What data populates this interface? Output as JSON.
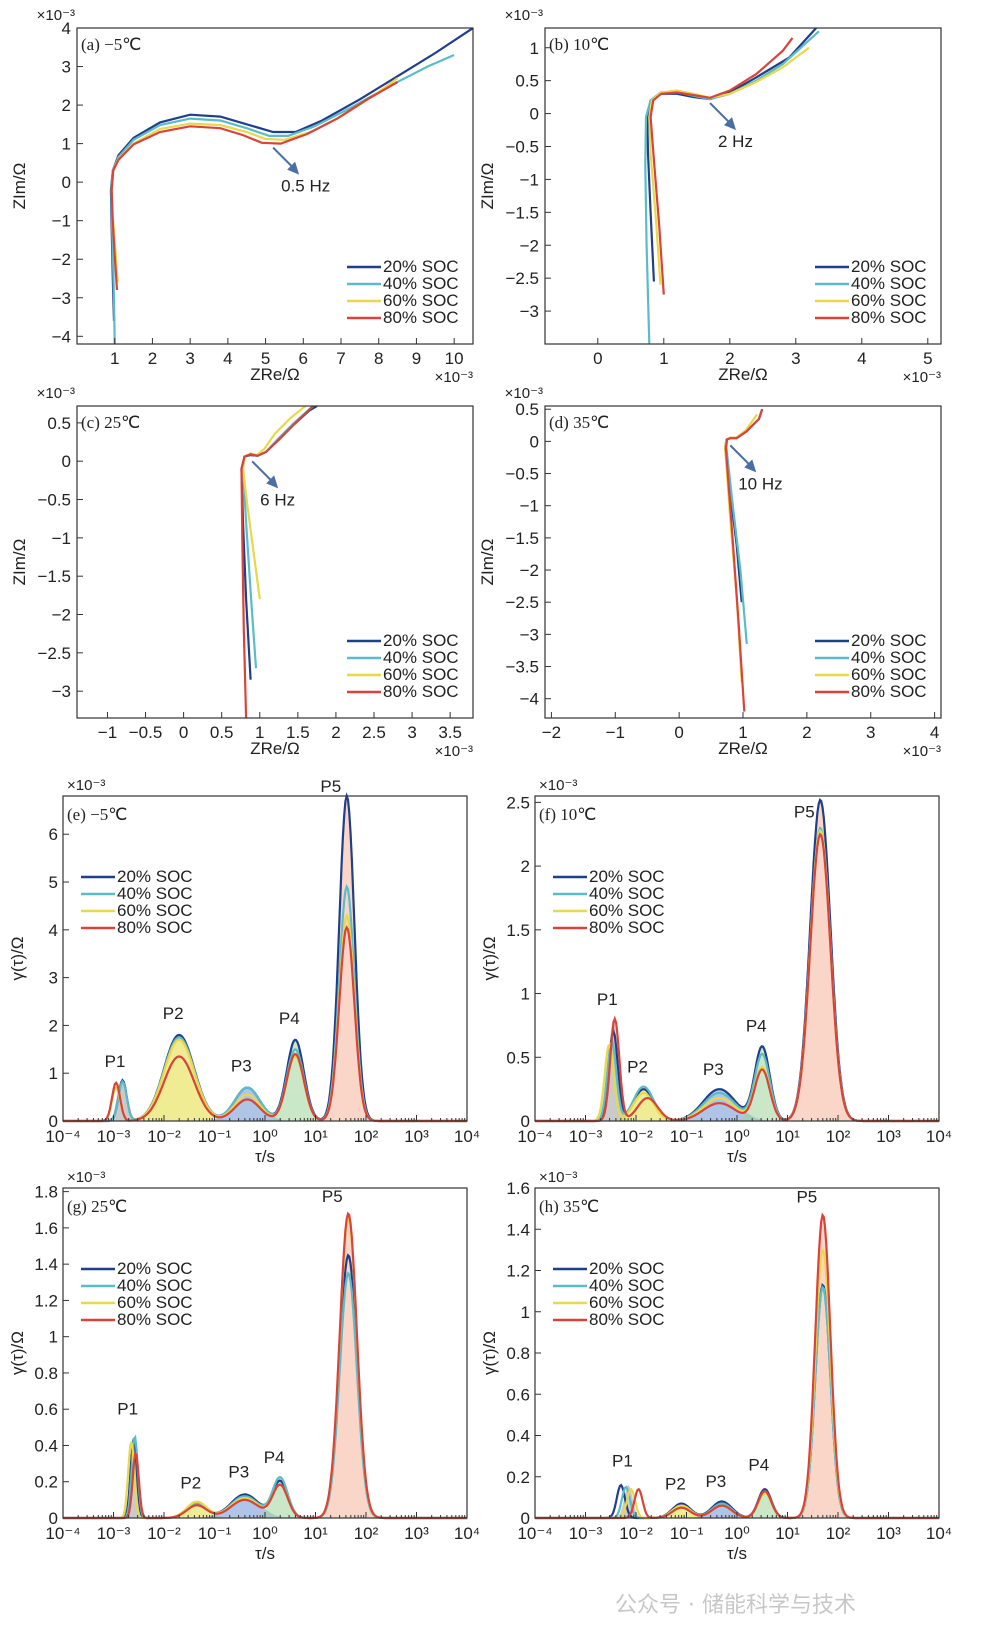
{
  "watermark": "公众号 · 储能科学与技术",
  "legend_entries": [
    "20% SOC",
    "40% SOC",
    "60% SOC",
    "80% SOC"
  ],
  "series_colors": {
    "20% SOC": "#1f3f8a",
    "40% SOC": "#5bbcc8",
    "60% SOC": "#e8d84a",
    "80% SOC": "#d9433a"
  },
  "peak_fill_colors": {
    "P1": "#9e9e9e",
    "P2": "#e2dd3a",
    "P3": "#6f94d6",
    "P4": "#9fd49a",
    "P5": "#f5b49c"
  },
  "chart_data": [
    {
      "id": "a",
      "type": "line",
      "title": "(a) −5℃",
      "xlabel": "Z_Re/Ω",
      "ylabel": "Z_Im/Ω",
      "x_scale": "×10⁻³",
      "y_scale": "×10⁻³",
      "xlim": [
        0,
        10.5
      ],
      "ylim": [
        -4.2,
        4
      ],
      "xticks": [
        1,
        2,
        3,
        4,
        5,
        6,
        7,
        8,
        9,
        10
      ],
      "yticks": [
        -4,
        -3,
        -2,
        -1,
        0,
        1,
        2,
        3,
        4
      ],
      "annotation": {
        "text": "0.5 Hz",
        "x": 5.2,
        "y": 1.0
      },
      "series": [
        {
          "name": "20% SOC",
          "x": [
            0.98,
            0.95,
            0.92,
            0.9,
            0.95,
            1.1,
            1.5,
            2.2,
            3.0,
            3.8,
            4.5,
            5.2,
            5.8,
            6.5,
            7.5,
            8.5,
            9.5,
            10.5
          ],
          "y": [
            -3.6,
            -2.5,
            -1.2,
            -0.2,
            0.3,
            0.7,
            1.15,
            1.55,
            1.75,
            1.7,
            1.5,
            1.3,
            1.3,
            1.6,
            2.15,
            2.75,
            3.35,
            4.0
          ]
        },
        {
          "name": "40% SOC",
          "x": [
            1.0,
            0.98,
            0.94,
            0.91,
            0.95,
            1.1,
            1.5,
            2.2,
            3.0,
            3.8,
            4.5,
            5.1,
            5.6,
            6.3,
            7.3,
            8.3,
            9.3,
            10.0
          ],
          "y": [
            -4.2,
            -3.0,
            -1.5,
            -0.2,
            0.3,
            0.65,
            1.1,
            1.48,
            1.65,
            1.6,
            1.4,
            1.2,
            1.2,
            1.45,
            1.95,
            2.5,
            3.0,
            3.3
          ]
        },
        {
          "name": "60% SOC",
          "x": [
            1.08,
            1.02,
            0.95,
            0.92,
            0.96,
            1.1,
            1.5,
            2.2,
            3.0,
            3.8,
            4.5,
            5.0,
            5.5,
            6.2,
            7.0,
            7.8,
            8.5
          ],
          "y": [
            -2.6,
            -1.8,
            -0.9,
            -0.2,
            0.3,
            0.6,
            1.0,
            1.38,
            1.52,
            1.48,
            1.3,
            1.12,
            1.1,
            1.3,
            1.7,
            2.2,
            2.7
          ]
        },
        {
          "name": "80% SOC",
          "x": [
            1.06,
            1.0,
            0.94,
            0.92,
            0.96,
            1.1,
            1.5,
            2.2,
            3.0,
            3.8,
            4.4,
            4.9,
            5.4,
            6.1,
            6.9,
            7.7,
            8.5
          ],
          "y": [
            -2.8,
            -1.9,
            -0.9,
            -0.2,
            0.3,
            0.58,
            0.98,
            1.3,
            1.45,
            1.4,
            1.22,
            1.02,
            1.0,
            1.25,
            1.65,
            2.15,
            2.6
          ]
        }
      ]
    },
    {
      "id": "b",
      "type": "line",
      "title": "(b) 10℃",
      "xlabel": "Z_Re/Ω",
      "ylabel": "Z_Im/Ω",
      "x_scale": "×10⁻³",
      "y_scale": "×10⁻³",
      "xlim": [
        -0.8,
        5.2
      ],
      "ylim": [
        -3.5,
        1.3
      ],
      "xticks": [
        0,
        1,
        2,
        3,
        4,
        5
      ],
      "yticks": [
        -3,
        -2.5,
        -2,
        -1.5,
        -1,
        -0.5,
        0,
        0.5,
        1
      ],
      "annotation": {
        "text": "2 Hz",
        "x": 1.7,
        "y": 0.22
      },
      "series": [
        {
          "name": "20% SOC",
          "x": [
            0.85,
            0.8,
            0.76,
            0.75,
            0.8,
            0.95,
            1.2,
            1.45,
            1.7,
            2.0,
            2.4,
            2.9,
            3.4
          ],
          "y": [
            -2.55,
            -1.5,
            -0.6,
            -0.05,
            0.2,
            0.3,
            0.3,
            0.25,
            0.22,
            0.32,
            0.55,
            0.85,
            1.4
          ]
        },
        {
          "name": "40% SOC",
          "x": [
            0.78,
            0.74,
            0.72,
            0.73,
            0.8,
            0.95,
            1.2,
            1.45,
            1.7,
            2.0,
            2.4,
            2.8,
            3.35
          ],
          "y": [
            -3.5,
            -2.0,
            -0.8,
            -0.05,
            0.2,
            0.32,
            0.33,
            0.27,
            0.22,
            0.3,
            0.5,
            0.75,
            1.25
          ]
        },
        {
          "name": "60% SOC",
          "x": [
            0.95,
            0.88,
            0.8,
            0.78,
            0.82,
            0.95,
            1.2,
            1.45,
            1.7,
            2.0,
            2.4,
            2.8,
            3.2
          ],
          "y": [
            -2.6,
            -1.6,
            -0.6,
            -0.05,
            0.2,
            0.32,
            0.35,
            0.3,
            0.24,
            0.3,
            0.48,
            0.7,
            1.0
          ]
        },
        {
          "name": "80% SOC",
          "x": [
            1.0,
            0.93,
            0.85,
            0.8,
            0.84,
            0.96,
            1.2,
            1.45,
            1.7,
            2.0,
            2.4,
            2.8,
            2.95
          ],
          "y": [
            -2.75,
            -1.7,
            -0.7,
            -0.05,
            0.2,
            0.3,
            0.32,
            0.28,
            0.24,
            0.35,
            0.6,
            0.95,
            1.15
          ]
        }
      ]
    },
    {
      "id": "c",
      "type": "line",
      "title": "(c) 25℃",
      "xlabel": "Z_Re/Ω",
      "ylabel": "Z_Im/Ω",
      "x_scale": "×10⁻³",
      "y_scale": "×10⁻³",
      "xlim": [
        -1.4,
        3.8
      ],
      "ylim": [
        -3.35,
        0.72
      ],
      "xticks": [
        -1,
        -0.5,
        0,
        0.5,
        1,
        1.5,
        2,
        2.5,
        3,
        3.5
      ],
      "yticks": [
        -3,
        -2.5,
        -2,
        -1.5,
        -1,
        -0.5,
        0,
        0.5
      ],
      "annotation": {
        "text": "6 Hz",
        "x": 0.9,
        "y": 0.05
      },
      "series": [
        {
          "name": "20% SOC",
          "x": [
            0.88,
            0.82,
            0.78,
            0.76,
            0.8,
            0.88,
            0.97,
            1.08,
            1.25,
            1.45,
            1.65,
            1.75
          ],
          "y": [
            -2.85,
            -1.8,
            -0.8,
            -0.1,
            0.06,
            0.08,
            0.07,
            0.12,
            0.28,
            0.48,
            0.66,
            0.72
          ]
        },
        {
          "name": "40% SOC",
          "x": [
            0.95,
            0.88,
            0.82,
            0.78,
            0.8,
            0.88,
            0.97,
            1.08,
            1.25,
            1.45,
            1.7
          ],
          "y": [
            -2.7,
            -1.7,
            -0.8,
            -0.1,
            0.06,
            0.09,
            0.07,
            0.12,
            0.3,
            0.5,
            0.72
          ]
        },
        {
          "name": "60% SOC",
          "x": [
            1.0,
            0.92,
            0.84,
            0.78,
            0.8,
            0.88,
            0.96,
            1.06,
            1.2,
            1.4,
            1.6
          ],
          "y": [
            -1.8,
            -1.2,
            -0.6,
            -0.1,
            0.06,
            0.1,
            0.08,
            0.16,
            0.36,
            0.56,
            0.72
          ]
        },
        {
          "name": "80% SOC",
          "x": [
            0.82,
            0.79,
            0.77,
            0.76,
            0.8,
            0.88,
            0.97,
            1.08,
            1.25,
            1.45,
            1.7
          ],
          "y": [
            -3.35,
            -2.2,
            -1.0,
            -0.1,
            0.06,
            0.09,
            0.07,
            0.12,
            0.28,
            0.48,
            0.72
          ]
        }
      ]
    },
    {
      "id": "d",
      "type": "line",
      "title": "(d) 35℃",
      "xlabel": "Z_Re/Ω",
      "ylabel": "Z_Im/Ω",
      "x_scale": "×10⁻³",
      "y_scale": "×10⁻³",
      "xlim": [
        -2.1,
        4.1
      ],
      "ylim": [
        -4.3,
        0.55
      ],
      "xticks": [
        -2,
        -1,
        0,
        1,
        2,
        3,
        4
      ],
      "yticks": [
        -4,
        -3.5,
        -3,
        -2.5,
        -2,
        -1.5,
        -1,
        -0.5,
        0,
        0.5
      ],
      "annotation": {
        "text": "10 Hz",
        "x": 0.8,
        "y": 0.0
      },
      "series": [
        {
          "name": "20% SOC",
          "x": [
            0.98,
            0.9,
            0.8,
            0.72,
            0.74,
            0.8,
            0.9,
            1.05,
            1.25,
            1.3
          ],
          "y": [
            -2.5,
            -1.6,
            -0.8,
            -0.1,
            0.03,
            0.05,
            0.05,
            0.15,
            0.35,
            0.5
          ]
        },
        {
          "name": "40% SOC",
          "x": [
            1.06,
            0.96,
            0.84,
            0.74,
            0.75,
            0.8,
            0.9,
            1.05,
            1.25,
            1.3
          ],
          "y": [
            -3.15,
            -2.0,
            -1.0,
            -0.1,
            0.03,
            0.05,
            0.05,
            0.15,
            0.35,
            0.5
          ]
        },
        {
          "name": "60% SOC",
          "x": [
            0.98,
            0.9,
            0.8,
            0.72,
            0.74,
            0.8,
            0.9,
            1.05,
            1.22
          ],
          "y": [
            -3.75,
            -2.4,
            -1.2,
            -0.1,
            0.03,
            0.06,
            0.06,
            0.18,
            0.42
          ]
        },
        {
          "name": "80% SOC",
          "x": [
            1.02,
            0.93,
            0.83,
            0.73,
            0.75,
            0.8,
            0.9,
            1.05,
            1.25,
            1.3
          ],
          "y": [
            -4.2,
            -2.8,
            -1.4,
            -0.1,
            0.03,
            0.05,
            0.05,
            0.15,
            0.35,
            0.5
          ]
        }
      ]
    },
    {
      "id": "e",
      "type": "area",
      "title": "(e) −5℃",
      "xlabel": "τ/s",
      "ylabel": "γ(τ)/Ω",
      "x_scale": "log",
      "y_scale": "×10⁻³",
      "xlim": [
        -4,
        4
      ],
      "ylim": [
        0,
        6.8
      ],
      "yticks": [
        0,
        1,
        2,
        3,
        4,
        5,
        6
      ],
      "x_ticklabels": [
        "10⁻⁴",
        "10⁻³",
        "10⁻²",
        "10⁻¹",
        "10⁰",
        "10¹",
        "10²",
        "10³",
        "10⁴"
      ],
      "peaks": [
        {
          "label": "P1",
          "center": -2.85,
          "heights": [
            0.85,
            0.82,
            0.7,
            0.8
          ],
          "width": 0.08,
          "shifts": [
            0.03,
            0.03,
            -0.1,
            -0.1
          ]
        },
        {
          "label": "P2",
          "center": -1.7,
          "heights": [
            1.8,
            1.75,
            1.7,
            1.35
          ],
          "width": 0.3
        },
        {
          "label": "P3",
          "center": -0.35,
          "heights": [
            0.7,
            0.7,
            0.55,
            0.45
          ],
          "width": 0.25
        },
        {
          "label": "P4",
          "center": 0.6,
          "heights": [
            1.7,
            1.5,
            1.35,
            1.4
          ],
          "width": 0.17
        },
        {
          "label": "P5",
          "center": 1.62,
          "heights": [
            6.8,
            4.9,
            4.3,
            4.05
          ],
          "width": 0.15
        }
      ],
      "peak_label_values": {
        "P1": 1.05,
        "P2": 2.05,
        "P3": 0.95,
        "P4": 1.95,
        "P5": 6.8
      }
    },
    {
      "id": "f",
      "type": "area",
      "title": "(f) 10℃",
      "xlabel": "τ/s",
      "ylabel": "γ(τ)/Ω",
      "x_scale": "log",
      "y_scale": "×10⁻³",
      "xlim": [
        -4,
        4
      ],
      "ylim": [
        0,
        2.55
      ],
      "yticks": [
        0,
        0.5,
        1,
        1.5,
        2,
        2.5
      ],
      "x_ticklabels": [
        "10⁻⁴",
        "10⁻³",
        "10⁻²",
        "10⁻¹",
        "10⁰",
        "10¹",
        "10²",
        "10³",
        "10⁴"
      ],
      "peaks": [
        {
          "label": "P1",
          "center": -2.45,
          "heights": [
            0.7,
            0.62,
            0.6,
            0.8
          ],
          "width": 0.09,
          "shifts": [
            0.0,
            -0.03,
            -0.08,
            0.03
          ]
        },
        {
          "label": "P2",
          "center": -1.85,
          "heights": [
            0.25,
            0.27,
            0.22,
            0.18
          ],
          "width": 0.2,
          "shifts": [
            0,
            0,
            0,
            0.08
          ]
        },
        {
          "label": "P3",
          "center": -0.35,
          "heights": [
            0.25,
            0.22,
            0.18,
            0.14
          ],
          "width": 0.32
        },
        {
          "label": "P4",
          "center": 0.5,
          "heights": [
            0.58,
            0.52,
            0.42,
            0.4
          ],
          "width": 0.15
        },
        {
          "label": "P5",
          "center": 1.65,
          "heights": [
            2.52,
            2.3,
            2.28,
            2.25
          ],
          "width": 0.2
        }
      ],
      "peak_label_values": {
        "P1": 0.88,
        "P2": 0.35,
        "P3": 0.33,
        "P4": 0.67,
        "P5": 2.35
      }
    },
    {
      "id": "g",
      "type": "area",
      "title": "(g) 25℃",
      "xlabel": "τ/s",
      "ylabel": "γ(τ)/Ω",
      "x_scale": "log",
      "y_scale": "×10⁻³",
      "xlim": [
        -4,
        4
      ],
      "ylim": [
        0,
        1.82
      ],
      "yticks": [
        0,
        0.2,
        0.4,
        0.6,
        0.8,
        1,
        1.2,
        1.4,
        1.6,
        1.8
      ],
      "x_ticklabels": [
        "10⁻⁴",
        "10⁻³",
        "10⁻²",
        "10⁻¹",
        "10⁰",
        "10¹",
        "10²",
        "10³",
        "10⁴"
      ],
      "peaks": [
        {
          "label": "P1",
          "center": -2.6,
          "heights": [
            0.44,
            0.45,
            0.42,
            0.36
          ],
          "width": 0.06,
          "shifts": [
            0.0,
            0.02,
            -0.05,
            0.04
          ]
        },
        {
          "label": "P2",
          "center": -1.35,
          "heights": [
            0.08,
            0.08,
            0.09,
            0.07
          ],
          "width": 0.2
        },
        {
          "label": "P3",
          "center": -0.4,
          "heights": [
            0.13,
            0.12,
            0.11,
            0.1
          ],
          "width": 0.28
        },
        {
          "label": "P4",
          "center": 0.3,
          "heights": [
            0.2,
            0.22,
            0.18,
            0.18
          ],
          "width": 0.15
        },
        {
          "label": "P5",
          "center": 1.65,
          "heights": [
            1.45,
            1.35,
            1.65,
            1.68
          ],
          "width": 0.17
        }
      ],
      "peak_label_values": {
        "P1": 0.55,
        "P2": 0.14,
        "P3": 0.2,
        "P4": 0.28,
        "P5": 1.72
      }
    },
    {
      "id": "h",
      "type": "area",
      "title": "(h) 35℃",
      "xlabel": "τ/s",
      "ylabel": "γ(τ)/Ω",
      "x_scale": "log",
      "y_scale": "×10⁻³",
      "xlim": [
        -4,
        4
      ],
      "ylim": [
        0,
        1.6
      ],
      "yticks": [
        0,
        0.2,
        0.4,
        0.6,
        0.8,
        1,
        1.2,
        1.4,
        1.6
      ],
      "x_ticklabels": [
        "10⁻⁴",
        "10⁻³",
        "10⁻²",
        "10⁻¹",
        "10⁰",
        "10¹",
        "10²",
        "10³",
        "10⁴"
      ],
      "peaks": [
        {
          "label": "P1",
          "center": -2.15,
          "heights": [
            0.16,
            0.15,
            0.14,
            0.14
          ],
          "width": 0.08,
          "shifts": [
            -0.15,
            -0.05,
            0.05,
            0.2
          ]
        },
        {
          "label": "P2",
          "center": -1.1,
          "heights": [
            0.07,
            0.06,
            0.06,
            0.05
          ],
          "width": 0.18
        },
        {
          "label": "P3",
          "center": -0.3,
          "heights": [
            0.08,
            0.07,
            0.06,
            0.06
          ],
          "width": 0.2
        },
        {
          "label": "P4",
          "center": 0.55,
          "heights": [
            0.14,
            0.13,
            0.12,
            0.13
          ],
          "width": 0.13
        },
        {
          "label": "P5",
          "center": 1.7,
          "heights": [
            1.13,
            1.12,
            1.3,
            1.47
          ],
          "width": 0.15
        }
      ],
      "peak_label_values": {
        "P1": 0.23,
        "P2": 0.12,
        "P3": 0.13,
        "P4": 0.21,
        "P5": 1.51
      }
    }
  ]
}
